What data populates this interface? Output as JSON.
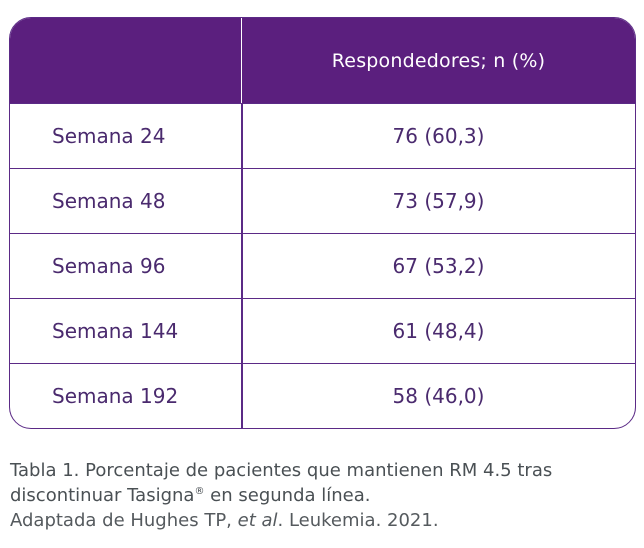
{
  "table": {
    "header": {
      "first_column": "",
      "value_column": "Respondedores; n (%)"
    },
    "rows": [
      {
        "label": "Semana 24",
        "value": "76 (60,3)"
      },
      {
        "label": "Semana 48",
        "value": "73 (57,9)"
      },
      {
        "label": "Semana 96",
        "value": "67 (53,2)"
      },
      {
        "label": "Semana 144",
        "value": "61 (48,4)"
      },
      {
        "label": "Semana 192",
        "value": "58 (46,0)"
      }
    ]
  },
  "caption": {
    "title_part1": "Tabla 1. Porcentaje de pacientes que mantienen RM 4.5 tras discontinuar Tasigna",
    "registered_mark": "®",
    "title_part2": " en segunda línea.",
    "source_prefix": "Adaptada de Hughes TP, ",
    "source_italic": "et al",
    "source_suffix": ". Leukemia. 2021."
  },
  "colors": {
    "header_background": "#5b1f7e",
    "border": "#5b2a86",
    "text_purple": "#4a2a6e",
    "caption_text": "#555a5e"
  }
}
